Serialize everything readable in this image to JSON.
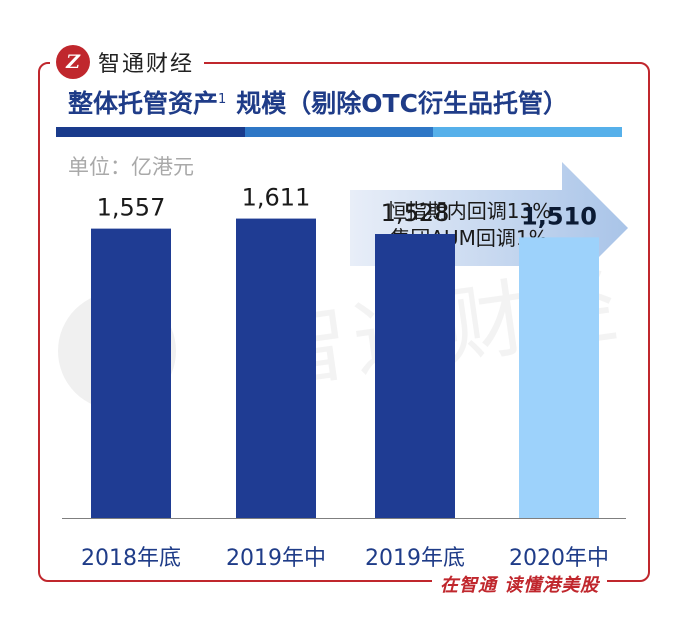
{
  "brand": {
    "name": "智通财经",
    "logo_letter": "Z"
  },
  "title": {
    "main": "整体托管资产",
    "superscript": "1",
    "suffix": "规模（剔除OTC衍生品托管）"
  },
  "unit": "单位：亿港元",
  "annotation": {
    "line1": "恒指期内回调13%",
    "line2": "集团AUM回调1%"
  },
  "colors": {
    "bar_dark": "#1f3c93",
    "bar_light": "#9dd2fb",
    "title_bar": [
      "#1a3b8c",
      "#2e77c6",
      "#56b0ea"
    ],
    "accent": "#c0272d"
  },
  "chart_data": {
    "type": "bar",
    "categories": [
      "2018年底",
      "2019年中",
      "2019年底",
      "2020年中"
    ],
    "values": [
      1557,
      1611,
      1528,
      1510
    ],
    "labels": [
      "1,557",
      "1,611",
      "1,528",
      "1,510"
    ],
    "ylim": [
      0,
      1980
    ],
    "highlight_index": 3,
    "grid": false
  },
  "footer": "在智通 读懂港美股"
}
